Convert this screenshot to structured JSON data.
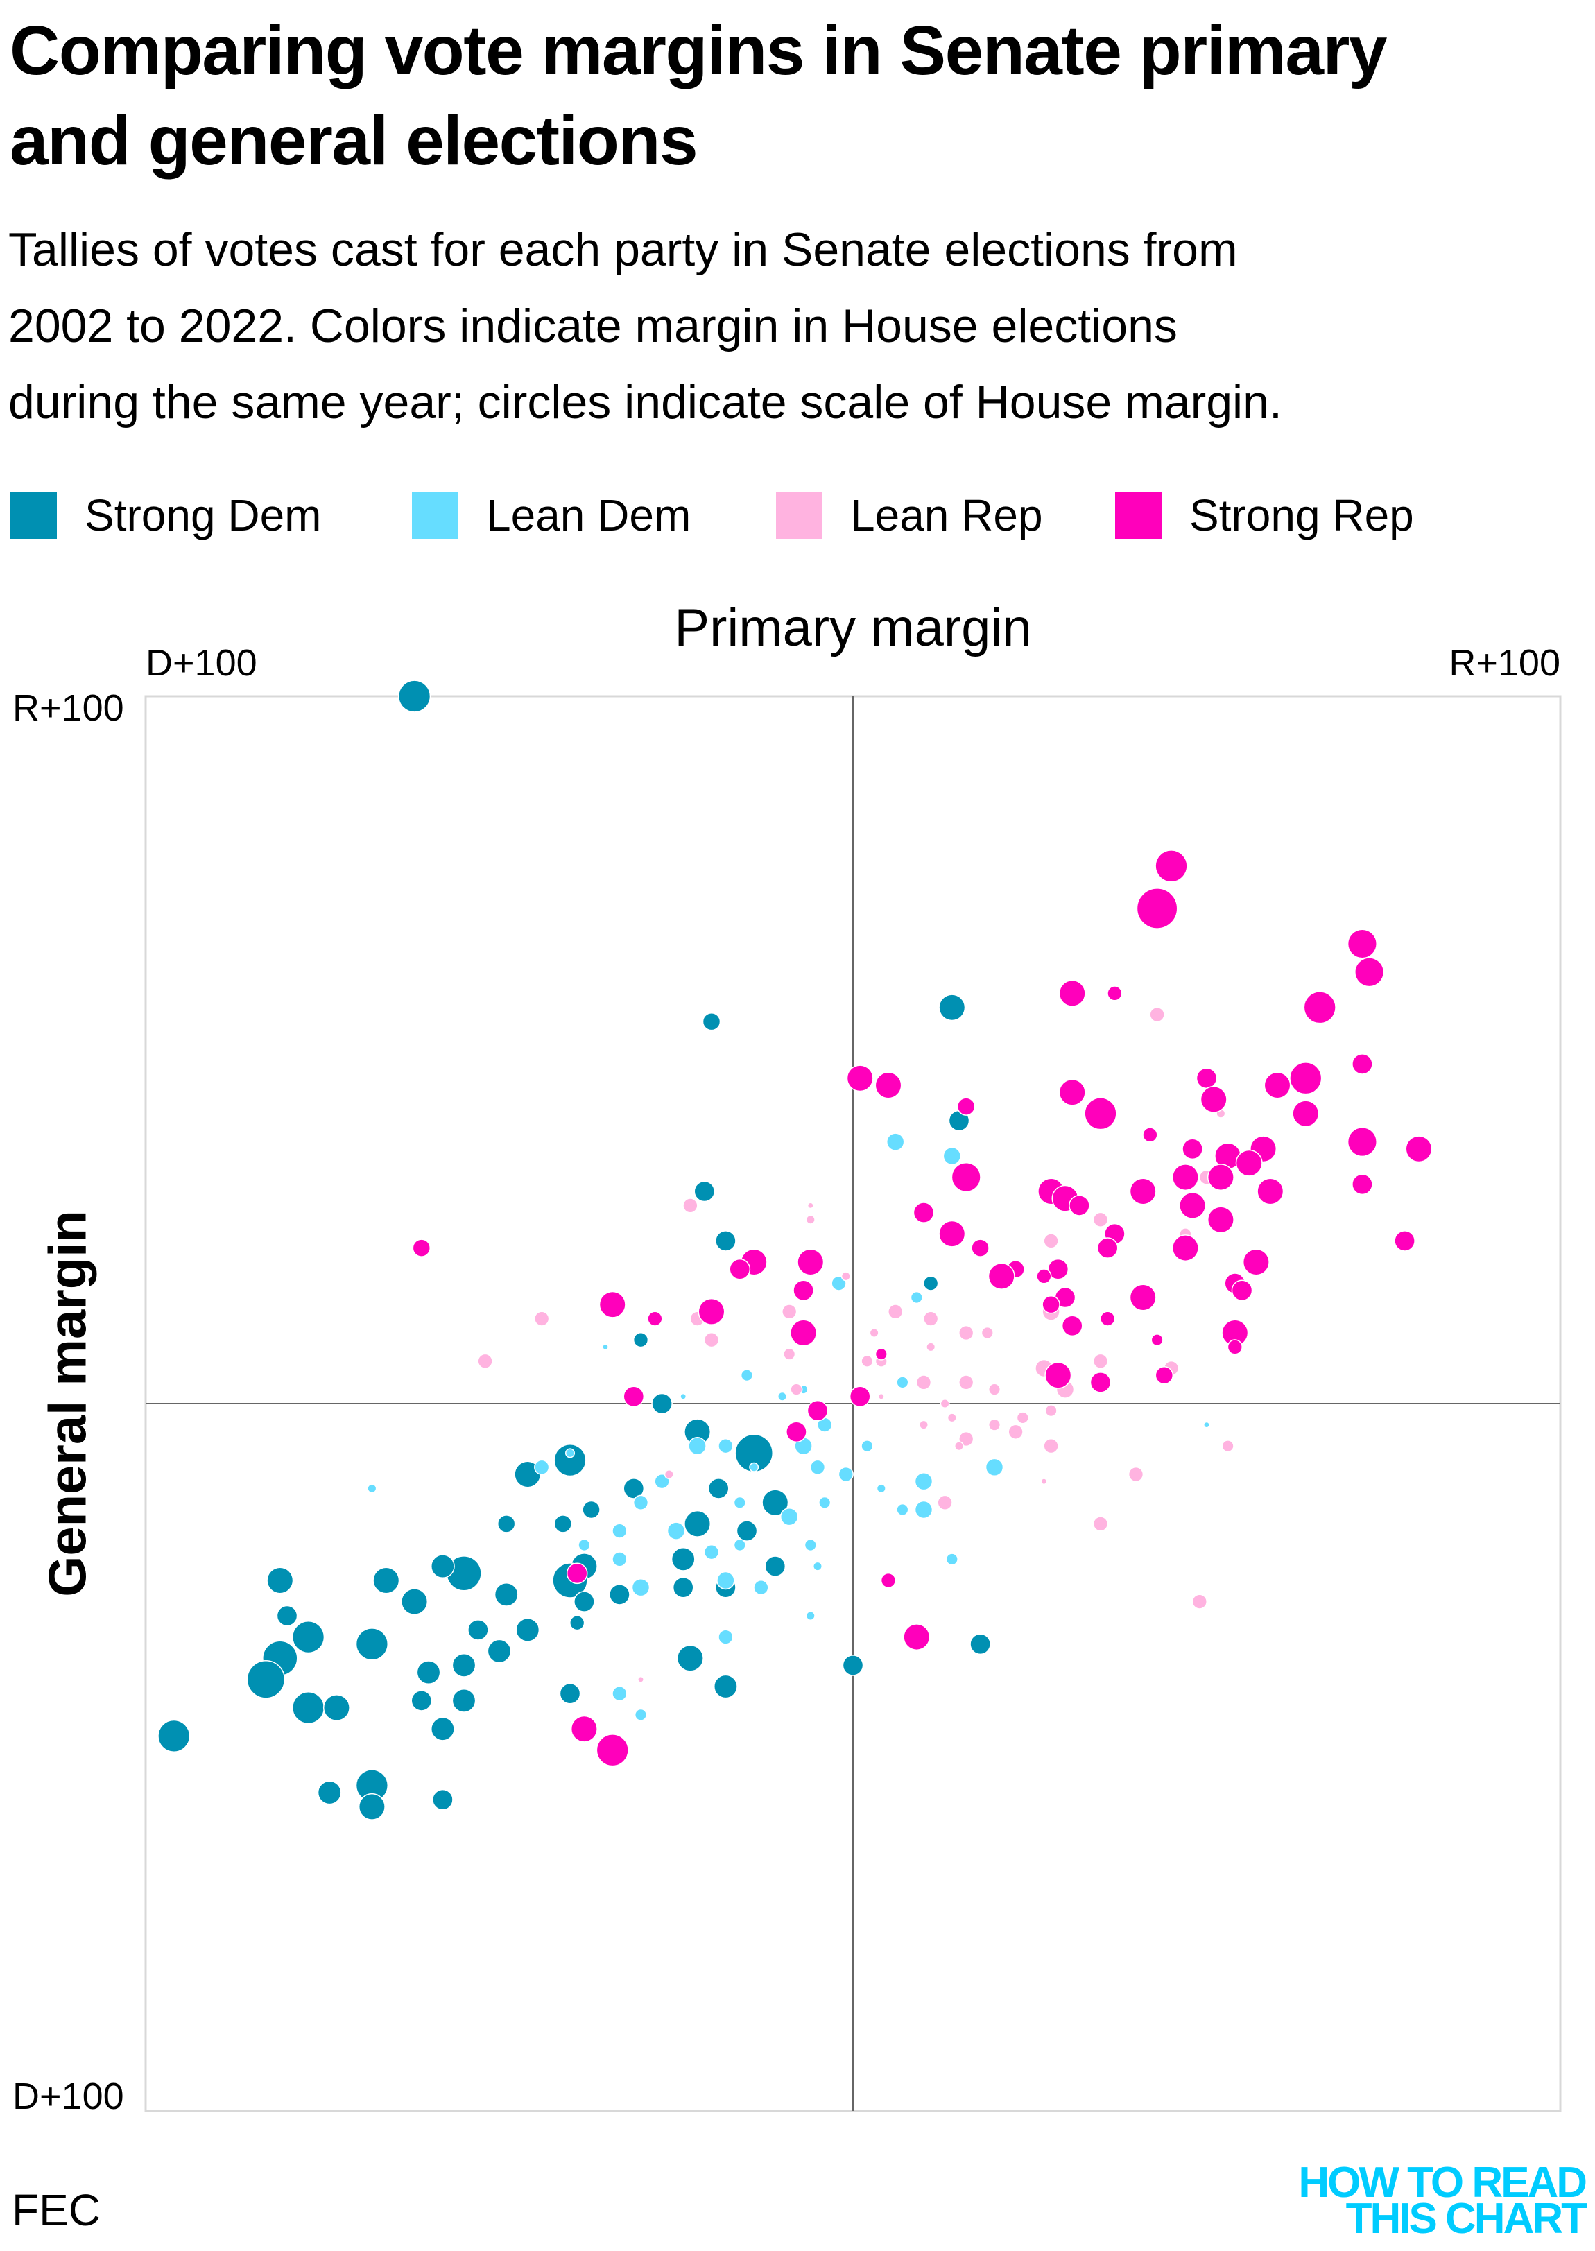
{
  "title_lines": [
    "Comparing vote margins in Senate primary",
    "and general elections"
  ],
  "subtitle_lines": [
    "Tallies of votes cast for each party in Senate elections from",
    "2002 to 2022. Colors indicate margin in House elections",
    "during the same year; circles indicate scale of House margin."
  ],
  "legend": [
    {
      "label": "Strong Dem",
      "color": "#0090b2"
    },
    {
      "label": "Lean Dem",
      "color": "#66ddff"
    },
    {
      "label": "Lean Rep",
      "color": "#ffb3e0"
    },
    {
      "label": "Strong Rep",
      "color": "#ff00bb"
    }
  ],
  "source": "FEC",
  "logo": [
    "HOW TO READ",
    "THIS CHART"
  ],
  "chart_data": {
    "type": "scatter",
    "xlabel": "Primary margin",
    "ylabel": "General margin",
    "x_tick_labels": [
      "D+100",
      "R+100"
    ],
    "y_tick_labels": [
      "R+100",
      "D+100"
    ],
    "xlim": [
      -100,
      100
    ],
    "ylim": [
      -100,
      100
    ],
    "point_format": [
      "primary_margin",
      "general_margin",
      "house_margin_scale"
    ],
    "series": [
      {
        "name": "Strong Dem",
        "color": "#0090b2",
        "points": [
          [
            -62,
            100,
            55
          ],
          [
            14,
            56,
            45
          ],
          [
            -20,
            54,
            30
          ],
          [
            15,
            40,
            35
          ],
          [
            -21,
            30,
            35
          ],
          [
            -18,
            23,
            35
          ],
          [
            11,
            17,
            25
          ],
          [
            -30,
            9,
            25
          ],
          [
            -27,
            0,
            35
          ],
          [
            -22,
            -4,
            45
          ],
          [
            -14,
            -7,
            65
          ],
          [
            -40,
            -8,
            55
          ],
          [
            -46,
            -10,
            45
          ],
          [
            -31,
            -12,
            35
          ],
          [
            -19,
            -12,
            35
          ],
          [
            -11,
            -14,
            45
          ],
          [
            -37,
            -15,
            30
          ],
          [
            -49,
            -17,
            30
          ],
          [
            -22,
            -17,
            45
          ],
          [
            -41,
            -17,
            30
          ],
          [
            -15,
            -18,
            35
          ],
          [
            -38,
            -23,
            45
          ],
          [
            -24,
            -22,
            40
          ],
          [
            -11,
            -23,
            35
          ],
          [
            -55,
            -24,
            60
          ],
          [
            -58,
            -23,
            40
          ],
          [
            -66,
            -25,
            45
          ],
          [
            -81,
            -25,
            45
          ],
          [
            -40,
            -25,
            60
          ],
          [
            -49,
            -27,
            40
          ],
          [
            -33,
            -27,
            35
          ],
          [
            -24,
            -26,
            35
          ],
          [
            -18,
            -26,
            35
          ],
          [
            -62,
            -28,
            45
          ],
          [
            -38,
            -28,
            35
          ],
          [
            -80,
            -30,
            35
          ],
          [
            -46,
            -32,
            40
          ],
          [
            -53,
            -32,
            35
          ],
          [
            -39,
            -31,
            25
          ],
          [
            -77,
            -33,
            55
          ],
          [
            -68,
            -34,
            55
          ],
          [
            -50,
            -35,
            40
          ],
          [
            -55,
            -37,
            40
          ],
          [
            -81,
            -36,
            60
          ],
          [
            -23,
            -36,
            45
          ],
          [
            18,
            -34,
            35
          ],
          [
            0,
            -37,
            35
          ],
          [
            -83,
            -39,
            65
          ],
          [
            -60,
            -38,
            40
          ],
          [
            -18,
            -40,
            40
          ],
          [
            -40,
            -41,
            35
          ],
          [
            -61,
            -42,
            35
          ],
          [
            -55,
            -42,
            40
          ],
          [
            -77,
            -43,
            55
          ],
          [
            -73,
            -43,
            45
          ],
          [
            -96,
            -47,
            55
          ],
          [
            -58,
            -46,
            40
          ],
          [
            -68,
            -54,
            55
          ],
          [
            -74,
            -55,
            40
          ],
          [
            -68,
            -57,
            45
          ],
          [
            -58,
            -56,
            35
          ]
        ]
      },
      {
        "name": "Lean Dem",
        "color": "#66ddff",
        "points": [
          [
            6,
            37,
            30
          ],
          [
            14,
            35,
            30
          ],
          [
            -2,
            17,
            25
          ],
          [
            9,
            15,
            20
          ],
          [
            -35,
            8,
            10
          ],
          [
            -24,
            1,
            10
          ],
          [
            -15,
            4,
            20
          ],
          [
            -10,
            1,
            15
          ],
          [
            -7,
            2,
            15
          ],
          [
            7,
            3,
            20
          ],
          [
            -4,
            -3,
            25
          ],
          [
            -22,
            -6,
            30
          ],
          [
            -18,
            -6,
            25
          ],
          [
            -7,
            -6,
            30
          ],
          [
            2,
            -6,
            20
          ],
          [
            -40,
            -7,
            15
          ],
          [
            -44,
            -9,
            25
          ],
          [
            -68,
            -12,
            15
          ],
          [
            -27,
            -11,
            25
          ],
          [
            -14,
            -9,
            15
          ],
          [
            -5,
            -9,
            25
          ],
          [
            -1,
            -10,
            25
          ],
          [
            20,
            -9,
            30
          ],
          [
            10,
            -11,
            30
          ],
          [
            4,
            -12,
            15
          ],
          [
            -9,
            -16,
            30
          ],
          [
            -30,
            -14,
            25
          ],
          [
            -16,
            -14,
            20
          ],
          [
            -4,
            -14,
            20
          ],
          [
            10,
            -15,
            30
          ],
          [
            7,
            -15,
            20
          ],
          [
            -25,
            -18,
            30
          ],
          [
            -33,
            -18,
            25
          ],
          [
            -16,
            -20,
            20
          ],
          [
            -6,
            -20,
            20
          ],
          [
            -20,
            -21,
            25
          ],
          [
            -33,
            -22,
            25
          ],
          [
            14,
            -22,
            20
          ],
          [
            -5,
            -23,
            15
          ],
          [
            -30,
            -26,
            30
          ],
          [
            -18,
            -25,
            30
          ],
          [
            -13,
            -26,
            25
          ],
          [
            -6,
            -30,
            15
          ],
          [
            -18,
            -33,
            25
          ],
          [
            -33,
            -41,
            25
          ],
          [
            -30,
            -44,
            20
          ],
          [
            50,
            -3,
            10
          ],
          [
            53,
            -6,
            10
          ],
          [
            -38,
            -20,
            20
          ]
        ]
      },
      {
        "name": "Lean Rep",
        "color": "#ffb3e0",
        "points": [
          [
            43,
            55,
            25
          ],
          [
            -23,
            28,
            25
          ],
          [
            -6,
            28,
            10
          ],
          [
            -6,
            26,
            15
          ],
          [
            -1,
            18,
            15
          ],
          [
            -9,
            13,
            25
          ],
          [
            -22,
            12,
            25
          ],
          [
            -20,
            9,
            25
          ],
          [
            -44,
            12,
            25
          ],
          [
            -52,
            6,
            25
          ],
          [
            -9,
            7,
            20
          ],
          [
            -8,
            2,
            20
          ],
          [
            6,
            13,
            25
          ],
          [
            11,
            12,
            25
          ],
          [
            16,
            10,
            25
          ],
          [
            19,
            10,
            20
          ],
          [
            3,
            10,
            15
          ],
          [
            4,
            6,
            20
          ],
          [
            2,
            6,
            20
          ],
          [
            11,
            8,
            15
          ],
          [
            28,
            23,
            25
          ],
          [
            35,
            26,
            25
          ],
          [
            50,
            32,
            25
          ],
          [
            52,
            41,
            15
          ],
          [
            47,
            24,
            20
          ],
          [
            28,
            13,
            30
          ],
          [
            27,
            5,
            30
          ],
          [
            30,
            2,
            30
          ],
          [
            35,
            6,
            25
          ],
          [
            45,
            5,
            25
          ],
          [
            10,
            3,
            25
          ],
          [
            16,
            3,
            25
          ],
          [
            20,
            2,
            20
          ],
          [
            13,
            0,
            15
          ],
          [
            14,
            -2,
            15
          ],
          [
            10,
            -3,
            15
          ],
          [
            16,
            -5,
            25
          ],
          [
            20,
            -3,
            20
          ],
          [
            24,
            -2,
            20
          ],
          [
            28,
            -1,
            20
          ],
          [
            15,
            -6,
            15
          ],
          [
            23,
            -4,
            25
          ],
          [
            28,
            -6,
            25
          ],
          [
            40,
            -10,
            25
          ],
          [
            13,
            -14,
            25
          ],
          [
            27,
            -11,
            10
          ],
          [
            35,
            -17,
            25
          ],
          [
            49,
            -28,
            25
          ],
          [
            -26,
            -10,
            15
          ],
          [
            -30,
            -39,
            10
          ],
          [
            53,
            -6,
            20
          ],
          [
            4,
            1,
            10
          ]
        ]
      },
      {
        "name": "Strong Rep",
        "color": "#ff00bb",
        "points": [
          [
            45,
            76,
            55
          ],
          [
            43,
            70,
            70
          ],
          [
            72,
            65,
            50
          ],
          [
            73,
            61,
            50
          ],
          [
            37,
            58,
            25
          ],
          [
            31,
            58,
            45
          ],
          [
            66,
            56,
            55
          ],
          [
            1,
            46,
            45
          ],
          [
            5,
            45,
            45
          ],
          [
            16,
            42,
            30
          ],
          [
            31,
            44,
            45
          ],
          [
            35,
            41,
            55
          ],
          [
            50,
            46,
            35
          ],
          [
            51,
            43,
            45
          ],
          [
            60,
            45,
            45
          ],
          [
            64,
            46,
            55
          ],
          [
            72,
            48,
            35
          ],
          [
            64,
            41,
            45
          ],
          [
            42,
            38,
            25
          ],
          [
            72,
            37,
            50
          ],
          [
            80,
            36,
            45
          ],
          [
            58,
            36,
            45
          ],
          [
            48,
            36,
            35
          ],
          [
            53,
            35,
            45
          ],
          [
            56,
            34,
            45
          ],
          [
            52,
            32,
            45
          ],
          [
            47,
            32,
            45
          ],
          [
            16,
            32,
            50
          ],
          [
            28,
            30,
            45
          ],
          [
            30,
            29,
            45
          ],
          [
            32,
            28,
            35
          ],
          [
            41,
            30,
            45
          ],
          [
            59,
            30,
            45
          ],
          [
            72,
            31,
            35
          ],
          [
            48,
            28,
            45
          ],
          [
            10,
            27,
            35
          ],
          [
            52,
            26,
            45
          ],
          [
            37,
            24,
            35
          ],
          [
            14,
            24,
            45
          ],
          [
            36,
            22,
            35
          ],
          [
            18,
            22,
            30
          ],
          [
            47,
            22,
            45
          ],
          [
            78,
            23,
            35
          ],
          [
            -61,
            22,
            30
          ],
          [
            -14,
            20,
            45
          ],
          [
            -6,
            20,
            45
          ],
          [
            -16,
            19,
            35
          ],
          [
            23,
            19,
            30
          ],
          [
            29,
            19,
            35
          ],
          [
            57,
            20,
            45
          ],
          [
            21,
            18,
            45
          ],
          [
            27,
            18,
            25
          ],
          [
            -7,
            16,
            35
          ],
          [
            54,
            17,
            35
          ],
          [
            55,
            16,
            35
          ],
          [
            41,
            15,
            45
          ],
          [
            30,
            15,
            35
          ],
          [
            -34,
            14,
            45
          ],
          [
            -28,
            12,
            25
          ],
          [
            -20,
            13,
            45
          ],
          [
            28,
            14,
            30
          ],
          [
            36,
            12,
            25
          ],
          [
            31,
            11,
            35
          ],
          [
            -7,
            10,
            45
          ],
          [
            54,
            10,
            45
          ],
          [
            54,
            8,
            25
          ],
          [
            43,
            9,
            20
          ],
          [
            4,
            7,
            20
          ],
          [
            29,
            4,
            45
          ],
          [
            35,
            3,
            35
          ],
          [
            44,
            4,
            30
          ],
          [
            -31,
            1,
            35
          ],
          [
            1,
            1,
            35
          ],
          [
            -5,
            -1,
            35
          ],
          [
            -8,
            -4,
            35
          ],
          [
            -39,
            -24,
            35
          ],
          [
            5,
            -25,
            25
          ],
          [
            9,
            -33,
            45
          ],
          [
            -38,
            -46,
            45
          ],
          [
            -34,
            -49,
            55
          ]
        ]
      }
    ]
  }
}
